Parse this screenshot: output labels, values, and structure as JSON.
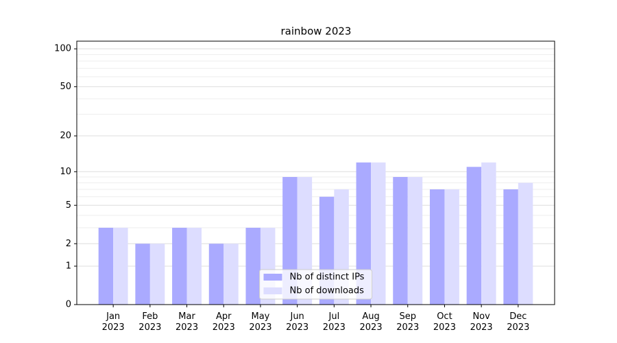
{
  "chart_data": {
    "type": "bar",
    "title": "rainbow 2023",
    "categories": [
      "Jan\n2023",
      "Feb\n2023",
      "Mar\n2023",
      "Apr\n2023",
      "May\n2023",
      "Jun\n2023",
      "Jul\n2023",
      "Aug\n2023",
      "Sep\n2023",
      "Oct\n2023",
      "Nov\n2023",
      "Dec\n2023"
    ],
    "series": [
      {
        "name": "Nb of distinct IPs",
        "color": "#aaaaff",
        "values": [
          3,
          2,
          3,
          2,
          3,
          9,
          6,
          12,
          9,
          7,
          11,
          7
        ]
      },
      {
        "name": "Nb of downloads",
        "color": "#ddddff",
        "values": [
          3,
          2,
          3,
          2,
          3,
          9,
          7,
          12,
          9,
          7,
          12,
          8
        ]
      }
    ],
    "yscale": "log1p",
    "ylim": [
      0,
      115
    ],
    "yticks": [
      0,
      1,
      2,
      5,
      10,
      20,
      50,
      100
    ],
    "yminorticks": [
      3,
      4,
      6,
      7,
      8,
      9,
      30,
      40,
      60,
      70,
      80,
      90
    ],
    "grid": true,
    "legend": "lower center"
  }
}
